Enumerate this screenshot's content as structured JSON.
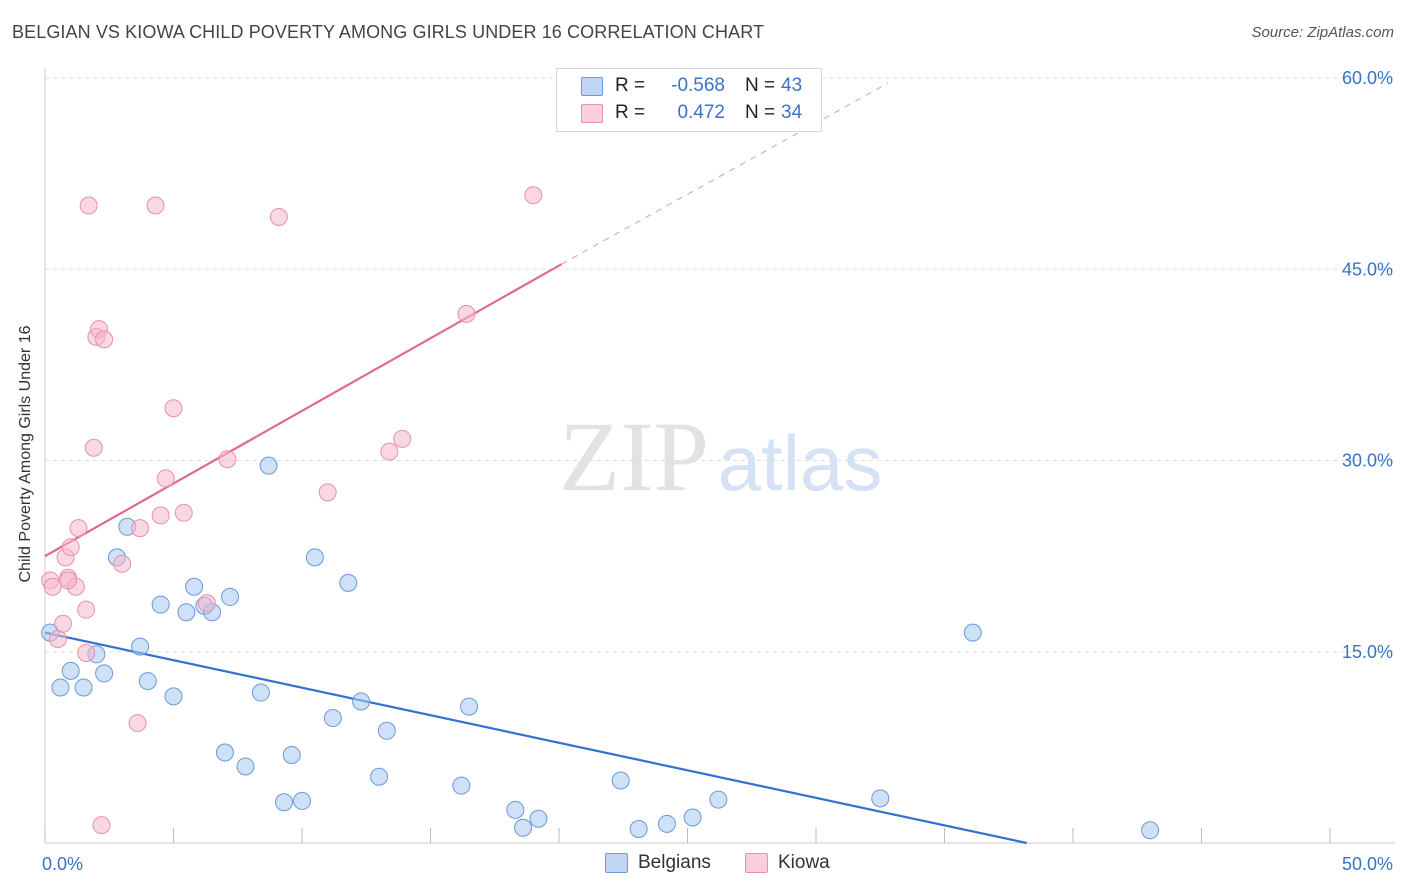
{
  "header": {
    "title": "BELGIAN VS KIOWA CHILD POVERTY AMONG GIRLS UNDER 16 CORRELATION CHART",
    "source": "Source: ZipAtlas.com"
  },
  "watermark": {
    "zip": "ZIP",
    "atlas": "atlas"
  },
  "legend": {
    "rows": [
      {
        "r_label": "R =",
        "r_value": "-0.568",
        "n_label": "N =",
        "n_value": "43",
        "color": "#a8c8f0"
      },
      {
        "r_label": "R =",
        "r_value": "0.472",
        "n_label": "N =",
        "n_value": "34",
        "color": "#f5b8cc"
      }
    ],
    "bottom": [
      {
        "label": "Belgians",
        "color": "#a8c8f0"
      },
      {
        "label": "Kiowa",
        "color": "#f5b8cc"
      }
    ]
  },
  "colors": {
    "belgian_fill": "#a8c8f0",
    "belgian_stroke": "#6a9ad8",
    "belgian_line": "#2f73d0",
    "kiowa_fill": "#f5b8cc",
    "kiowa_stroke": "#e890ad",
    "kiowa_line": "#e06a92",
    "axis_text": "#3873c8",
    "grid": "#dcdcdc"
  },
  "chart_data": {
    "type": "scatter",
    "title": "BELGIAN VS KIOWA CHILD POVERTY AMONG GIRLS UNDER 16 CORRELATION CHART",
    "xlabel": "",
    "ylabel": "Child Poverty Among Girls Under 16",
    "xlim": [
      0,
      50
    ],
    "ylim": [
      0,
      60
    ],
    "x_tick_labels": [
      "0.0%",
      "50.0%"
    ],
    "y_ticks": [
      15,
      30,
      45,
      60
    ],
    "y_tick_labels": [
      "15.0%",
      "30.0%",
      "45.0%",
      "60.0%"
    ],
    "series": [
      {
        "name": "Belgians",
        "R": -0.568,
        "N": 43,
        "points": [
          [
            0.2,
            16.5
          ],
          [
            0.6,
            12.2
          ],
          [
            1.0,
            13.5
          ],
          [
            1.5,
            12.2
          ],
          [
            2.0,
            14.8
          ],
          [
            2.3,
            13.3
          ],
          [
            3.2,
            24.8
          ],
          [
            2.8,
            22.4
          ],
          [
            3.7,
            15.4
          ],
          [
            4.0,
            12.7
          ],
          [
            4.5,
            18.7
          ],
          [
            5.0,
            11.5
          ],
          [
            5.5,
            18.1
          ],
          [
            5.8,
            20.1
          ],
          [
            6.2,
            18.6
          ],
          [
            6.5,
            18.1
          ],
          [
            7.0,
            7.1
          ],
          [
            7.2,
            19.3
          ],
          [
            7.8,
            6.0
          ],
          [
            8.4,
            11.8
          ],
          [
            8.7,
            29.6
          ],
          [
            9.3,
            3.2
          ],
          [
            9.6,
            6.9
          ],
          [
            10.0,
            3.3
          ],
          [
            10.5,
            22.4
          ],
          [
            11.2,
            9.8
          ],
          [
            11.8,
            20.4
          ],
          [
            12.3,
            11.1
          ],
          [
            13.0,
            5.2
          ],
          [
            13.3,
            8.8
          ],
          [
            16.2,
            4.5
          ],
          [
            16.5,
            10.7
          ],
          [
            18.3,
            2.6
          ],
          [
            18.6,
            1.2
          ],
          [
            19.2,
            1.9
          ],
          [
            22.4,
            4.9
          ],
          [
            23.1,
            1.1
          ],
          [
            24.2,
            1.5
          ],
          [
            25.2,
            2.0
          ],
          [
            26.2,
            3.4
          ],
          [
            32.5,
            3.5
          ],
          [
            36.1,
            16.5
          ],
          [
            43.0,
            1.0
          ]
        ],
        "trend": {
          "x0": 0,
          "y0": 16.5,
          "x1": 38.2,
          "y1": 0.0
        }
      },
      {
        "name": "Kiowa",
        "R": 0.472,
        "N": 34,
        "points": [
          [
            0.2,
            20.6
          ],
          [
            0.3,
            20.1
          ],
          [
            0.5,
            16.0
          ],
          [
            0.7,
            17.2
          ],
          [
            0.8,
            22.4
          ],
          [
            0.9,
            20.8
          ],
          [
            1.0,
            23.2
          ],
          [
            1.2,
            20.1
          ],
          [
            1.3,
            24.7
          ],
          [
            1.6,
            18.3
          ],
          [
            1.6,
            14.9
          ],
          [
            1.7,
            50.0
          ],
          [
            1.9,
            31.0
          ],
          [
            2.0,
            39.7
          ],
          [
            2.1,
            40.3
          ],
          [
            2.3,
            39.5
          ],
          [
            3.0,
            21.9
          ],
          [
            3.6,
            9.4
          ],
          [
            3.7,
            24.7
          ],
          [
            4.3,
            50.0
          ],
          [
            4.5,
            25.7
          ],
          [
            4.7,
            28.6
          ],
          [
            5.0,
            34.1
          ],
          [
            5.4,
            25.9
          ],
          [
            6.3,
            18.8
          ],
          [
            7.1,
            30.1
          ],
          [
            9.1,
            49.1
          ],
          [
            11.0,
            27.5
          ],
          [
            13.4,
            30.7
          ],
          [
            13.9,
            31.7
          ],
          [
            16.4,
            41.5
          ],
          [
            19.0,
            50.8
          ],
          [
            2.2,
            1.4
          ],
          [
            0.9,
            20.6
          ]
        ],
        "trend": {
          "x0": 0,
          "y0": 22.5,
          "x1": 20.1,
          "y1": 45.4,
          "dash_x1": 32.8,
          "dash_y1": 59.6
        }
      }
    ]
  }
}
